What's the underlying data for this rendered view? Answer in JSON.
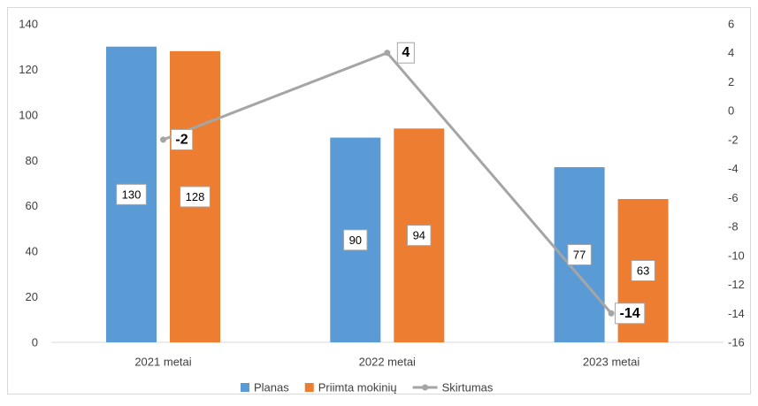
{
  "chart_data": {
    "type": "bar",
    "categories": [
      "2021 metai",
      "2022 metai",
      "2023 metai"
    ],
    "series": [
      {
        "name": "Planas",
        "type": "bar",
        "axis": "left",
        "color": "#5b9bd5",
        "values": [
          130,
          90,
          77
        ]
      },
      {
        "name": "Priimta mokinių",
        "type": "bar",
        "axis": "left",
        "color": "#ed7d31",
        "values": [
          128,
          94,
          63
        ]
      },
      {
        "name": "Skirtumas",
        "type": "line",
        "axis": "right",
        "color": "#a5a5a5",
        "values": [
          -2,
          4,
          -14
        ]
      }
    ],
    "y_left": {
      "min": 0,
      "max": 140,
      "step": 20,
      "ticks": [
        "0",
        "20",
        "40",
        "60",
        "80",
        "100",
        "120",
        "140"
      ]
    },
    "y_right": {
      "min": -16,
      "max": 6,
      "step": 2,
      "ticks": [
        "-16",
        "-14",
        "-12",
        "-10",
        "-8",
        "-6",
        "-4",
        "-2",
        "0",
        "2",
        "4",
        "6"
      ]
    },
    "grid": false,
    "legend_position": "bottom"
  }
}
